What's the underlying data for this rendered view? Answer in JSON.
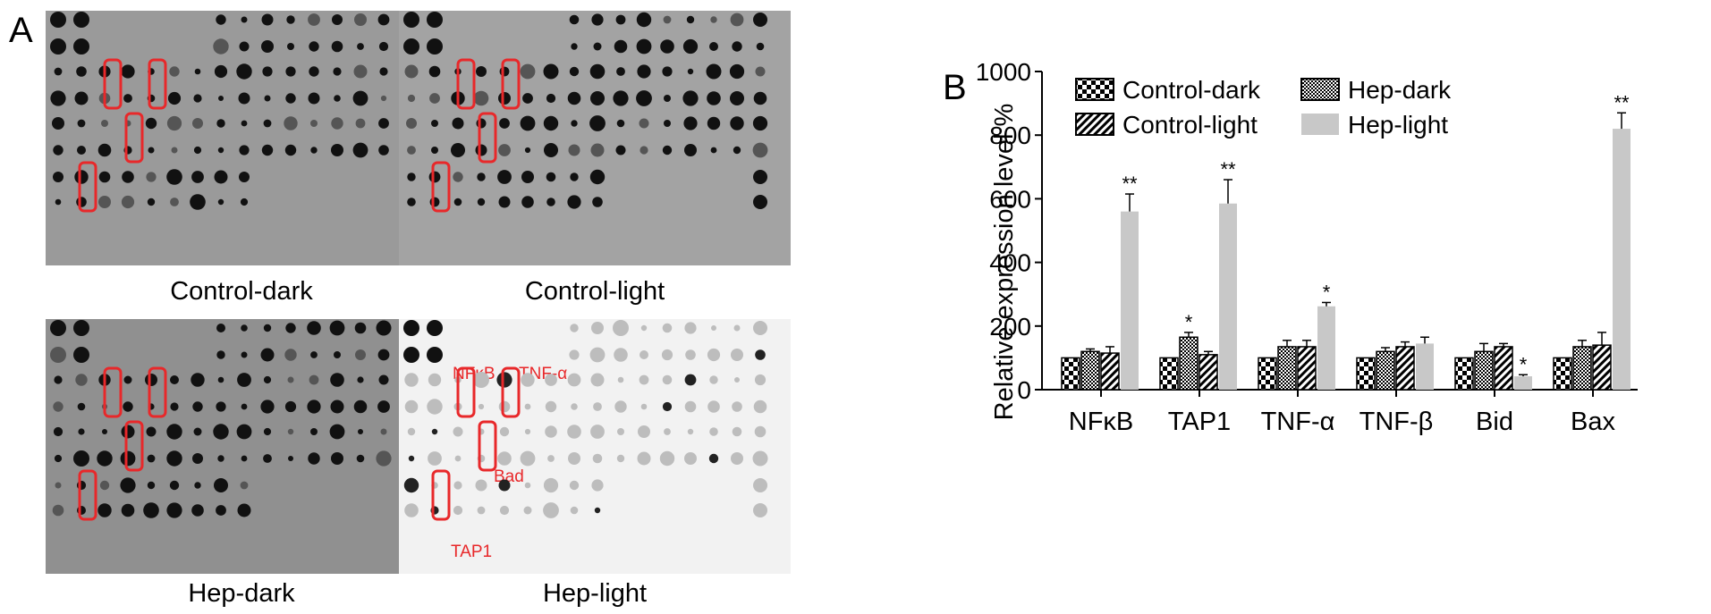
{
  "panel_labels": {
    "a": "A",
    "b": "B"
  },
  "blots": [
    {
      "key": "control-dark",
      "caption": "Control-dark",
      "background": "#9a9a9a",
      "style": "dark"
    },
    {
      "key": "control-light",
      "caption": "Control-light",
      "background": "#a3a3a3",
      "style": "dark"
    },
    {
      "key": "hep-dark",
      "caption": "Hep-dark",
      "background": "#909090",
      "style": "dark"
    },
    {
      "key": "hep-light",
      "caption": "Hep-light",
      "background": "#f2f2f2",
      "style": "light"
    }
  ],
  "spot_labels": {
    "nfkb": "NFκB",
    "tnfa": "TNF-α",
    "bad": "Bad",
    "tap1": "TAP1"
  },
  "colors": {
    "highlight": "#e8282a",
    "axis": "#000000",
    "hep_light_bar": "#c8c8c8"
  },
  "chart_data": {
    "type": "bar",
    "ylabel": "Relative expression level %",
    "ylim": [
      0,
      1000
    ],
    "yticks": [
      0,
      200,
      400,
      600,
      800,
      1000
    ],
    "categories": [
      "NFκB",
      "TAP1",
      "TNF-α",
      "TNF-β",
      "Bid",
      "Bax"
    ],
    "legend_position": "top",
    "series": [
      {
        "name": "Control-dark",
        "pattern": "checker",
        "values": [
          100,
          100,
          100,
          100,
          100,
          100
        ],
        "errors": [
          0,
          0,
          0,
          0,
          0,
          0
        ],
        "marks": [
          "",
          "",
          "",
          "",
          "",
          ""
        ]
      },
      {
        "name": "Hep-dark",
        "pattern": "fine-checker",
        "values": [
          120,
          165,
          135,
          120,
          120,
          135
        ],
        "errors": [
          8,
          15,
          20,
          12,
          25,
          20
        ],
        "marks": [
          "",
          "*",
          "",
          "",
          "",
          ""
        ]
      },
      {
        "name": "Control-light",
        "pattern": "diagonal",
        "values": [
          115,
          110,
          135,
          135,
          135,
          140
        ],
        "errors": [
          20,
          10,
          20,
          15,
          10,
          40
        ],
        "marks": [
          "",
          "",
          "",
          "",
          "",
          ""
        ]
      },
      {
        "name": "Hep-light",
        "pattern": "solid-gray",
        "values": [
          560,
          585,
          262,
          145,
          42,
          820
        ],
        "errors": [
          55,
          75,
          12,
          20,
          5,
          50
        ],
        "marks": [
          "**",
          "**",
          "*",
          "",
          "*",
          "**"
        ]
      }
    ]
  }
}
